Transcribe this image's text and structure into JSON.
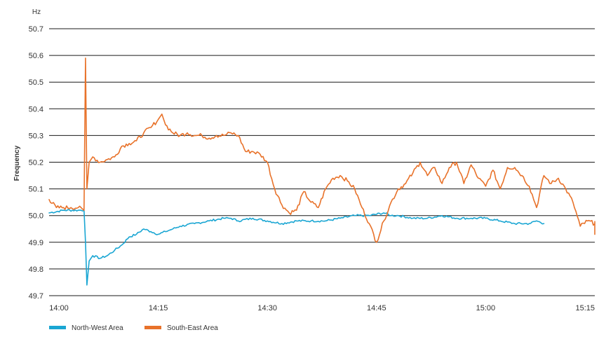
{
  "chart_data": {
    "type": "line",
    "title": "",
    "xlabel": "",
    "ylabel": "Frequency",
    "y_unit": "Hz",
    "ylim": [
      49.7,
      50.7
    ],
    "y_ticks": [
      "49.7",
      "49.8",
      "49.9",
      "50.0",
      "50.1",
      "50.2",
      "50.3",
      "50.4",
      "50.5",
      "50.6",
      "50.7"
    ],
    "xlim": [
      "14:00",
      "15:15"
    ],
    "x_ticks": [
      "14:00",
      "14:15",
      "14:30",
      "14:45",
      "15:00",
      "15:15"
    ],
    "grid": "horizontal",
    "legend_position": "bottom-left",
    "series": [
      {
        "name": "North-West Area",
        "color": "#1aa6d3",
        "points": [
          [
            "14:00",
            50.01
          ],
          [
            "14:02",
            50.02
          ],
          [
            "14:04",
            50.02
          ],
          [
            "14:04.8",
            50.02
          ],
          [
            "14:05.0",
            49.9
          ],
          [
            "14:05.2",
            49.74
          ],
          [
            "14:05.5",
            49.83
          ],
          [
            "14:06",
            49.85
          ],
          [
            "14:07",
            49.84
          ],
          [
            "14:08",
            49.85
          ],
          [
            "14:09",
            49.87
          ],
          [
            "14:10",
            49.89
          ],
          [
            "14:11",
            49.92
          ],
          [
            "14:12",
            49.93
          ],
          [
            "14:13",
            49.95
          ],
          [
            "14:14",
            49.94
          ],
          [
            "14:15",
            49.93
          ],
          [
            "14:16",
            49.94
          ],
          [
            "14:17",
            49.95
          ],
          [
            "14:18",
            49.96
          ],
          [
            "14:20",
            49.97
          ],
          [
            "14:22",
            49.98
          ],
          [
            "14:24",
            49.99
          ],
          [
            "14:25",
            49.99
          ],
          [
            "14:26",
            49.98
          ],
          [
            "14:28",
            49.99
          ],
          [
            "14:30",
            49.98
          ],
          [
            "14:32",
            49.97
          ],
          [
            "14:34",
            49.98
          ],
          [
            "14:36",
            49.98
          ],
          [
            "14:38",
            49.98
          ],
          [
            "14:40",
            49.99
          ],
          [
            "14:42",
            50.0
          ],
          [
            "14:44",
            50.0
          ],
          [
            "14:46",
            50.01
          ],
          [
            "14:47",
            50.0
          ],
          [
            "14:48",
            50.0
          ],
          [
            "14:50",
            49.99
          ],
          [
            "14:52",
            49.99
          ],
          [
            "14:54",
            50.0
          ],
          [
            "14:56",
            49.99
          ],
          [
            "14:58",
            49.99
          ],
          [
            "15:00",
            49.99
          ],
          [
            "15:02",
            49.98
          ],
          [
            "15:04",
            49.97
          ],
          [
            "15:06",
            49.97
          ],
          [
            "15:07",
            49.98
          ],
          [
            "15:08",
            49.97
          ]
        ]
      },
      {
        "name": "South-East Area",
        "color": "#e8722a",
        "points": [
          [
            "14:00",
            50.06
          ],
          [
            "14:01",
            50.03
          ],
          [
            "14:02",
            50.03
          ],
          [
            "14:03",
            50.03
          ],
          [
            "14:04",
            50.03
          ],
          [
            "14:04.8",
            50.02
          ],
          [
            "14:05.0",
            50.59
          ],
          [
            "14:05.2",
            50.1
          ],
          [
            "14:05.5",
            50.2
          ],
          [
            "14:06",
            50.22
          ],
          [
            "14:07",
            50.2
          ],
          [
            "14:08",
            50.21
          ],
          [
            "14:09",
            50.22
          ],
          [
            "14:10",
            50.26
          ],
          [
            "14:11",
            50.27
          ],
          [
            "14:12",
            50.28
          ],
          [
            "14:13",
            50.31
          ],
          [
            "14:14",
            50.33
          ],
          [
            "14:15",
            50.36
          ],
          [
            "14:15.5",
            50.38
          ],
          [
            "14:16",
            50.34
          ],
          [
            "14:17",
            50.31
          ],
          [
            "14:18",
            50.3
          ],
          [
            "14:19",
            50.31
          ],
          [
            "14:20",
            50.3
          ],
          [
            "14:21",
            50.3
          ],
          [
            "14:22",
            50.29
          ],
          [
            "14:23",
            50.3
          ],
          [
            "14:24",
            50.3
          ],
          [
            "14:25",
            50.31
          ],
          [
            "14:26",
            50.3
          ],
          [
            "14:27",
            50.24
          ],
          [
            "14:28",
            50.24
          ],
          [
            "14:29",
            50.23
          ],
          [
            "14:30",
            50.2
          ],
          [
            "14:31",
            50.1
          ],
          [
            "14:32",
            50.04
          ],
          [
            "14:33",
            50.01
          ],
          [
            "14:34",
            50.02
          ],
          [
            "14:35",
            50.09
          ],
          [
            "14:36",
            50.05
          ],
          [
            "14:37",
            50.03
          ],
          [
            "14:38",
            50.1
          ],
          [
            "14:39",
            50.14
          ],
          [
            "14:40",
            50.15
          ],
          [
            "14:41",
            50.13
          ],
          [
            "14:42",
            50.1
          ],
          [
            "14:43",
            50.03
          ],
          [
            "14:44",
            49.97
          ],
          [
            "14:45",
            49.9
          ],
          [
            "14:46",
            49.98
          ],
          [
            "14:47",
            50.05
          ],
          [
            "14:48",
            50.1
          ],
          [
            "14:49",
            50.12
          ],
          [
            "14:50",
            50.16
          ],
          [
            "14:51",
            50.2
          ],
          [
            "14:52",
            50.15
          ],
          [
            "14:53",
            50.18
          ],
          [
            "14:54",
            50.12
          ],
          [
            "14:55",
            50.18
          ],
          [
            "14:56",
            50.2
          ],
          [
            "14:57",
            50.12
          ],
          [
            "14:58",
            50.19
          ],
          [
            "14:59",
            50.14
          ],
          [
            "15:00",
            50.11
          ],
          [
            "15:01",
            50.17
          ],
          [
            "15:02",
            50.1
          ],
          [
            "15:03",
            50.18
          ],
          [
            "15:04",
            50.18
          ],
          [
            "15:05",
            50.15
          ],
          [
            "15:06",
            50.11
          ],
          [
            "15:07",
            50.03
          ],
          [
            "15:08",
            50.15
          ],
          [
            "15:09",
            50.12
          ],
          [
            "15:10",
            50.14
          ],
          [
            "15:11",
            50.1
          ],
          [
            "15:12",
            50.05
          ],
          [
            "15:13",
            49.96
          ],
          [
            "15:14",
            49.98
          ],
          [
            "15:15",
            49.97
          ],
          [
            "15:16",
            49.97
          ],
          [
            "15:17",
            49.96
          ],
          [
            "15:18",
            49.96
          ],
          [
            "15:19",
            49.93
          ],
          [
            "15:20",
            49.93
          ],
          [
            "15:21",
            49.95
          ]
        ]
      }
    ]
  }
}
